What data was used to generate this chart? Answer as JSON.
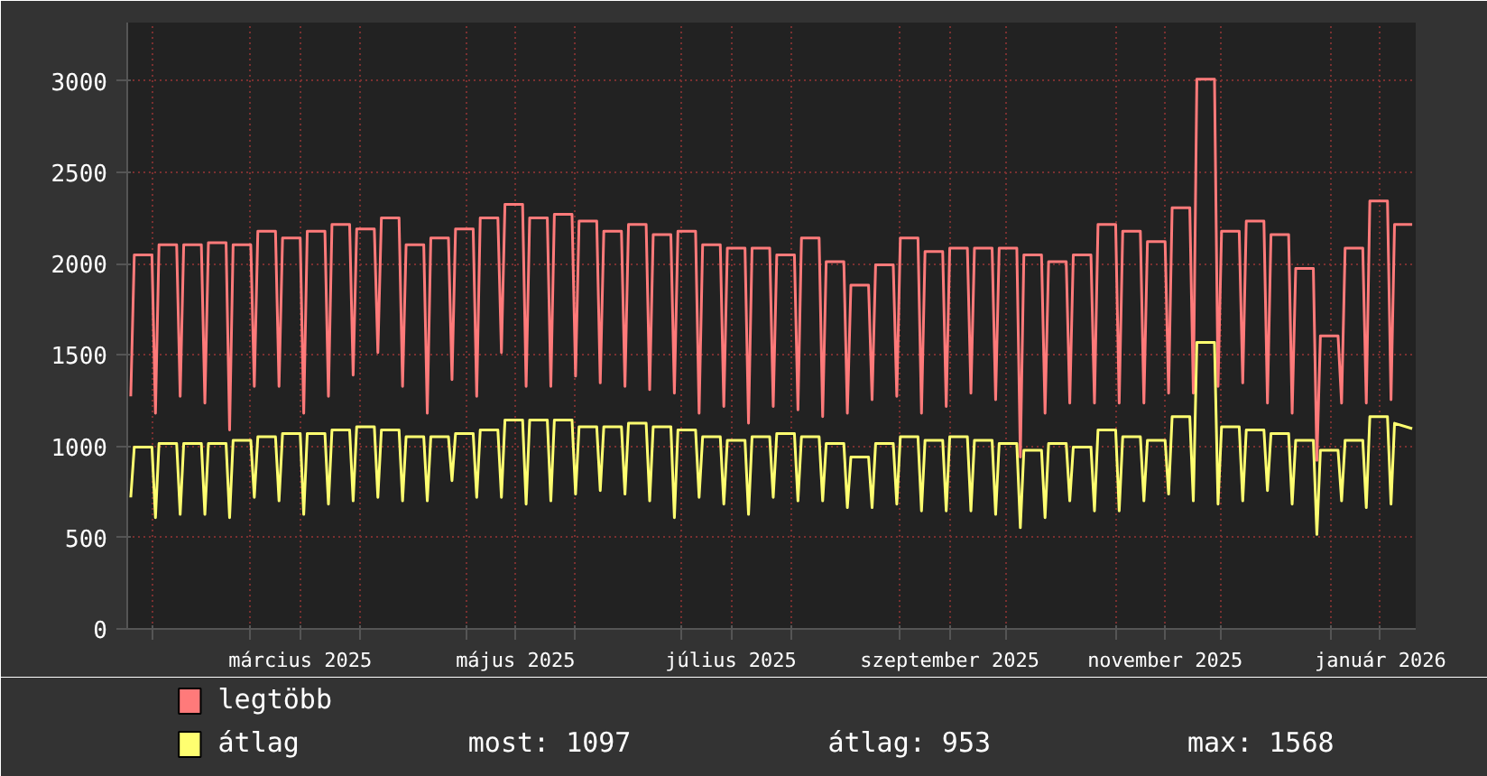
{
  "chart_data": {
    "type": "line",
    "x": [
      "2025-01-26",
      "2025-01-27",
      "2025-02-01",
      "2025-02-02",
      "2025-02-03",
      "2025-02-08",
      "2025-02-09",
      "2025-02-10",
      "2025-02-15",
      "2025-02-16",
      "2025-02-17",
      "2025-02-22",
      "2025-02-23",
      "2025-02-24",
      "2025-03-01",
      "2025-03-02",
      "2025-03-03",
      "2025-03-08",
      "2025-03-09",
      "2025-03-10",
      "2025-03-15",
      "2025-03-16",
      "2025-03-17",
      "2025-03-22",
      "2025-03-23",
      "2025-03-24",
      "2025-03-29",
      "2025-03-30",
      "2025-03-31",
      "2025-04-05",
      "2025-04-06",
      "2025-04-07",
      "2025-04-12",
      "2025-04-13",
      "2025-04-14",
      "2025-04-19",
      "2025-04-20",
      "2025-04-21",
      "2025-04-26",
      "2025-04-27",
      "2025-04-28",
      "2025-05-03",
      "2025-05-04",
      "2025-05-05",
      "2025-05-10",
      "2025-05-11",
      "2025-05-12",
      "2025-05-17",
      "2025-05-18",
      "2025-05-19",
      "2025-05-24",
      "2025-05-25",
      "2025-05-26",
      "2025-05-31",
      "2025-06-01",
      "2025-06-02",
      "2025-06-07",
      "2025-06-08",
      "2025-06-09",
      "2025-06-14",
      "2025-06-15",
      "2025-06-16",
      "2025-06-21",
      "2025-06-22",
      "2025-06-23",
      "2025-06-28",
      "2025-06-29",
      "2025-06-30",
      "2025-07-05",
      "2025-07-06",
      "2025-07-07",
      "2025-07-12",
      "2025-07-13",
      "2025-07-14",
      "2025-07-19",
      "2025-07-20",
      "2025-07-21",
      "2025-07-26",
      "2025-07-27",
      "2025-07-28",
      "2025-08-02",
      "2025-08-03",
      "2025-08-04",
      "2025-08-09",
      "2025-08-10",
      "2025-08-11",
      "2025-08-16",
      "2025-08-17",
      "2025-08-18",
      "2025-08-23",
      "2025-08-24",
      "2025-08-25",
      "2025-08-30",
      "2025-08-31",
      "2025-09-01",
      "2025-09-06",
      "2025-09-07",
      "2025-09-08",
      "2025-09-13",
      "2025-09-14",
      "2025-09-15",
      "2025-09-20",
      "2025-09-21",
      "2025-09-22",
      "2025-09-27",
      "2025-09-28",
      "2025-09-29",
      "2025-10-04",
      "2025-10-05",
      "2025-10-06",
      "2025-10-11",
      "2025-10-12",
      "2025-10-13",
      "2025-10-18",
      "2025-10-19",
      "2025-10-20",
      "2025-10-25",
      "2025-10-26",
      "2025-10-27",
      "2025-11-01",
      "2025-11-02",
      "2025-11-03",
      "2025-11-08",
      "2025-11-09",
      "2025-11-10",
      "2025-11-15",
      "2025-11-16",
      "2025-11-17",
      "2025-11-22",
      "2025-11-23",
      "2025-11-24",
      "2025-11-29",
      "2025-11-30",
      "2025-12-01",
      "2025-12-06",
      "2025-12-07",
      "2025-12-08",
      "2025-12-13",
      "2025-12-14",
      "2025-12-15",
      "2025-12-20",
      "2025-12-21",
      "2025-12-22",
      "2025-12-27",
      "2025-12-28",
      "2025-12-29",
      "2026-01-03",
      "2026-01-04",
      "2026-01-05",
      "2026-01-10",
      "2026-01-11",
      "2026-01-12",
      "2026-01-17",
      "2026-01-18",
      "2026-01-19",
      "2026-01-24"
    ],
    "series": [
      {
        "name": "legtöbb",
        "color": "#ff7a7a",
        "values": [
          1273,
          2048,
          2048,
          1181,
          2103,
          2103,
          1273,
          2103,
          2103,
          1236,
          2115,
          2115,
          1089,
          2103,
          2103,
          1328,
          2177,
          2177,
          1328,
          2140,
          2140,
          1181,
          2177,
          2177,
          1273,
          2214,
          2214,
          1390,
          2190,
          2190,
          1513,
          2251,
          2251,
          1328,
          2103,
          2103,
          1181,
          2140,
          2140,
          1365,
          2190,
          2190,
          1273,
          2251,
          2251,
          1513,
          2325,
          2325,
          1328,
          2251,
          2251,
          1328,
          2270,
          2270,
          1384,
          2233,
          2233,
          1347,
          2177,
          2177,
          1328,
          2214,
          2214,
          1310,
          2159,
          2159,
          1291,
          2177,
          2177,
          1181,
          2103,
          2103,
          1218,
          2085,
          2085,
          1126,
          2085,
          2085,
          1218,
          2048,
          2048,
          1199,
          2140,
          2140,
          1162,
          2011,
          2011,
          1181,
          1882,
          1882,
          1255,
          1993,
          1993,
          1273,
          2140,
          2140,
          1181,
          2066,
          2066,
          1218,
          2085,
          2085,
          1291,
          2085,
          2085,
          1255,
          2085,
          2085,
          941,
          2048,
          2048,
          1181,
          2011,
          2011,
          1236,
          2048,
          2048,
          1236,
          2214,
          2214,
          1236,
          2177,
          2177,
          1236,
          2121,
          2121,
          1291,
          2306,
          2306,
          1291,
          3010,
          3010,
          1328,
          2177,
          2177,
          1347,
          2233,
          2233,
          1236,
          2159,
          2159,
          1181,
          1974,
          1974,
          923,
          1605,
          1605,
          1236,
          2085,
          2085,
          1236,
          2343,
          2343,
          1255,
          2214,
          2214
        ]
      },
      {
        "name": "átlag",
        "color": "#ffff70",
        "values": [
          720,
          996,
          996,
          609,
          1015,
          1015,
          627,
          1015,
          1015,
          627,
          1015,
          1015,
          609,
          1033,
          1033,
          720,
          1052,
          1052,
          701,
          1070,
          1070,
          627,
          1070,
          1070,
          683,
          1089,
          1089,
          701,
          1107,
          1107,
          720,
          1089,
          1089,
          701,
          1052,
          1052,
          701,
          1052,
          1052,
          812,
          1070,
          1070,
          720,
          1089,
          1089,
          720,
          1144,
          1144,
          683,
          1144,
          1144,
          701,
          1144,
          1144,
          738,
          1107,
          1107,
          757,
          1107,
          1107,
          738,
          1126,
          1126,
          701,
          1107,
          1107,
          609,
          1089,
          1089,
          720,
          1052,
          1052,
          683,
          1033,
          1033,
          627,
          1052,
          1052,
          720,
          1070,
          1070,
          701,
          1052,
          1052,
          701,
          1015,
          1015,
          664,
          941,
          941,
          664,
          1015,
          1015,
          683,
          1052,
          1052,
          646,
          1033,
          1033,
          646,
          1052,
          1052,
          646,
          1033,
          1033,
          627,
          1015,
          1015,
          554,
          978,
          978,
          609,
          1015,
          1015,
          701,
          996,
          996,
          646,
          1089,
          1089,
          646,
          1052,
          1052,
          701,
          1033,
          1033,
          738,
          1162,
          1162,
          701,
          1568,
          1568,
          683,
          1107,
          1107,
          701,
          1089,
          1089,
          757,
          1070,
          1070,
          683,
          1033,
          1033,
          517,
          978,
          978,
          701,
          1033,
          1033,
          664,
          1162,
          1162,
          683,
          1126,
          1097
        ]
      }
    ],
    "xlim": [
      "2025-01-25",
      "2026-01-25"
    ],
    "xticks": [
      {
        "value": "2025-02-01",
        "label": null
      },
      {
        "value": "2025-03-01",
        "label": null
      },
      {
        "value": "2025-03-15",
        "label": "március 2025"
      },
      {
        "value": "2025-04-01",
        "label": null
      },
      {
        "value": "2025-05-01",
        "label": null
      },
      {
        "value": "2025-05-15",
        "label": "május 2025"
      },
      {
        "value": "2025-06-01",
        "label": null
      },
      {
        "value": "2025-07-01",
        "label": null
      },
      {
        "value": "2025-07-15",
        "label": "július 2025"
      },
      {
        "value": "2025-08-01",
        "label": null
      },
      {
        "value": "2025-09-01",
        "label": null
      },
      {
        "value": "2025-09-15",
        "label": "szeptember 2025"
      },
      {
        "value": "2025-10-01",
        "label": null
      },
      {
        "value": "2025-11-01",
        "label": null
      },
      {
        "value": "2025-11-15",
        "label": "november 2025"
      },
      {
        "value": "2025-12-01",
        "label": null
      },
      {
        "value": "2026-01-01",
        "label": null
      },
      {
        "value": "2026-01-15",
        "label": "január 2026"
      }
    ],
    "ylim": [
      0,
      3320
    ],
    "yticks": [
      0,
      500,
      1000,
      1500,
      2000,
      2500,
      3000
    ],
    "grid": true,
    "legend": "bottom",
    "annotations": [
      "most: 1097",
      "átlag: 953",
      "max: 1568"
    ]
  }
}
